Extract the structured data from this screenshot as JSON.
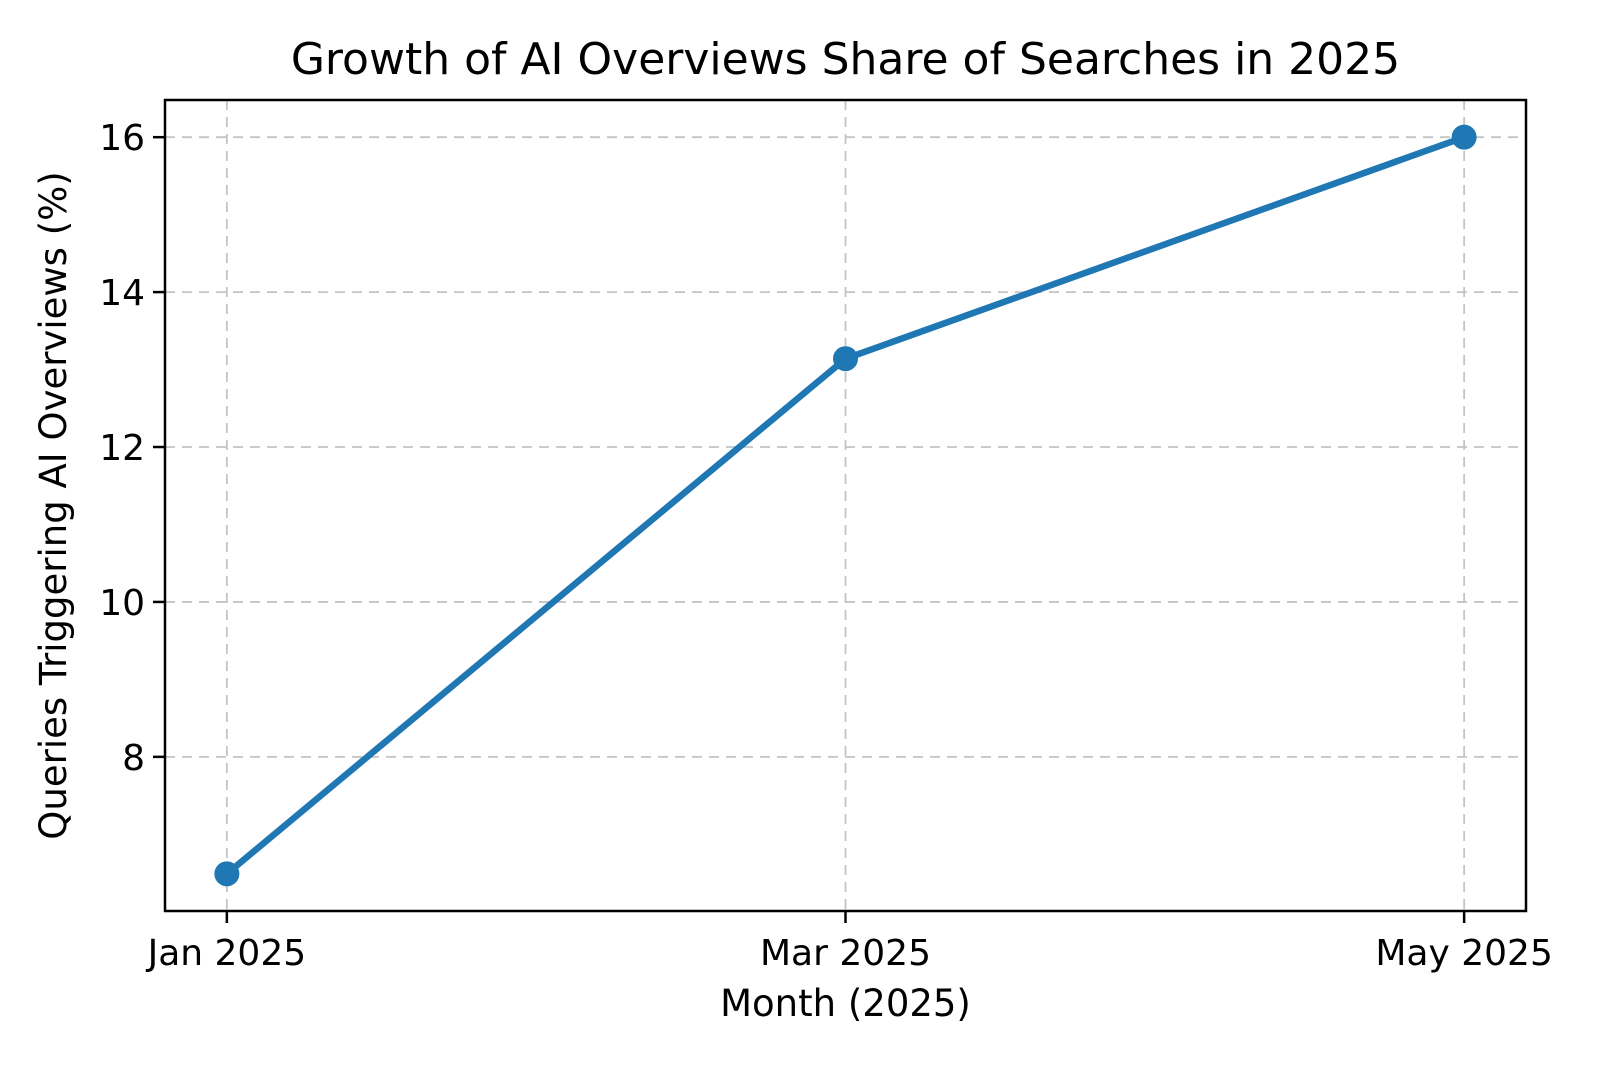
{
  "figure": {
    "background_color": "#ffffff",
    "text_color": "#000000"
  },
  "chart_data": {
    "type": "line",
    "title": "Growth of AI Overviews Share of Searches in 2025",
    "xlabel": "Month (2025)",
    "ylabel": "Queries Triggering AI Overviews (%)",
    "categories": [
      "Jan 2025",
      "Mar 2025",
      "May 2025"
    ],
    "series": [
      {
        "name": "Queries Triggering AI Overviews (%)",
        "values": [
          6.49,
          13.14,
          16.0
        ]
      }
    ],
    "yticks": [
      8,
      10,
      12,
      14,
      16
    ],
    "ylim": [
      6.01,
      16.48
    ],
    "xlim": [
      -0.1,
      2.1
    ],
    "grid": true,
    "grid_style": "dashed",
    "grid_color": "#c4c4c4",
    "line_color": "#1f77b4",
    "marker": "circle",
    "marker_color": "#1f77b4",
    "legend": "none"
  }
}
